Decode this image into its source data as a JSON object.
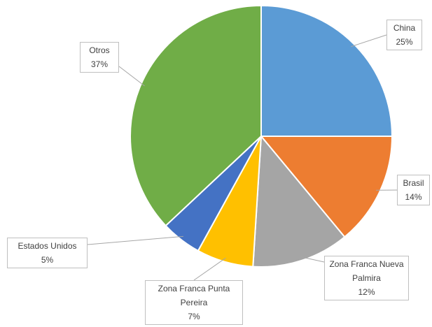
{
  "chart_data": {
    "type": "pie",
    "categories": [
      "China",
      "Brasil",
      "Zona Franca Nueva Palmira",
      "Zona Franca Punta Pereira",
      "Estados Unidos",
      "Otros"
    ],
    "values": [
      25,
      14,
      12,
      7,
      5,
      37
    ],
    "value_labels": [
      "25%",
      "14%",
      "12%",
      "7%",
      "5%",
      "37%"
    ],
    "colors": [
      "#5b9bd5",
      "#ed7d31",
      "#a5a5a5",
      "#ffc000",
      "#4472c4",
      "#70ad47"
    ]
  }
}
